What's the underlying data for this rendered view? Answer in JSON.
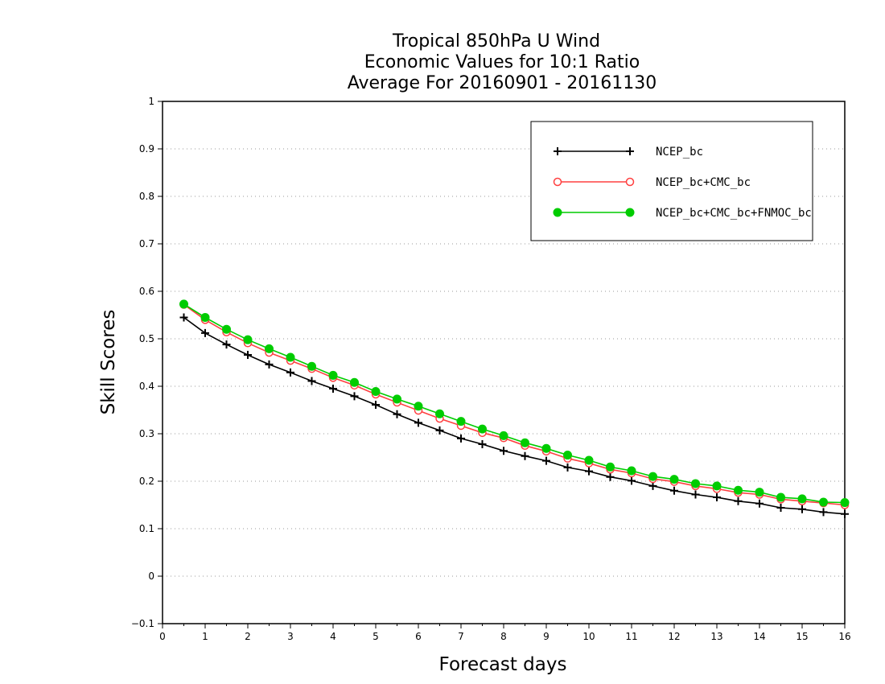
{
  "chart_data": {
    "type": "line",
    "title": "Tropical 850hPa U Wind",
    "subtitle": "Economic Values for 10:1 Ratio",
    "subtitle2": "Average For 20160901 - 20161130",
    "xlabel": "Forecast days",
    "ylabel": "Skill Scores",
    "xlim": [
      0,
      16
    ],
    "ylim": [
      -0.1,
      1
    ],
    "x_ticks": [
      "0",
      "1",
      "2",
      "3",
      "4",
      "5",
      "6",
      "7",
      "8",
      "9",
      "10",
      "11",
      "12",
      "13",
      "14",
      "15",
      "16"
    ],
    "y_ticks": [
      "−0.1",
      "0",
      "0.1",
      "0.2",
      "0.3",
      "0.4",
      "0.5",
      "0.6",
      "0.7",
      "0.8",
      "0.9",
      "1"
    ],
    "grid": "horizontal dotted",
    "legend": "top-right",
    "x": [
      0.5,
      1,
      1.5,
      2,
      2.5,
      3,
      3.5,
      4,
      4.5,
      5,
      5.5,
      6,
      6.5,
      7,
      7.5,
      8,
      8.5,
      9,
      9.5,
      10,
      10.5,
      11,
      11.5,
      12,
      12.5,
      13,
      13.5,
      14,
      14.5,
      15,
      15.5,
      16
    ],
    "series": [
      {
        "name": "NCEP_bc",
        "color": "#000000",
        "marker": "plus",
        "values": [
          0.545,
          0.512,
          0.488,
          0.466,
          0.446,
          0.429,
          0.411,
          0.395,
          0.379,
          0.361,
          0.341,
          0.323,
          0.307,
          0.29,
          0.278,
          0.264,
          0.253,
          0.243,
          0.229,
          0.221,
          0.209,
          0.201,
          0.19,
          0.18,
          0.172,
          0.166,
          0.158,
          0.153,
          0.144,
          0.141,
          0.135,
          0.131
        ]
      },
      {
        "name": "NCEP_bc+CMC_bc",
        "color": "#ff4040",
        "marker": "open-circle",
        "values": [
          0.572,
          0.54,
          0.514,
          0.491,
          0.471,
          0.454,
          0.437,
          0.418,
          0.402,
          0.383,
          0.366,
          0.349,
          0.332,
          0.317,
          0.302,
          0.291,
          0.275,
          0.263,
          0.248,
          0.238,
          0.225,
          0.217,
          0.205,
          0.199,
          0.19,
          0.184,
          0.176,
          0.172,
          0.162,
          0.158,
          0.154,
          0.15
        ]
      },
      {
        "name": "NCEP_bc+CMC_bc+FNMOC_bc",
        "color": "#00cc00",
        "marker": "filled-circle",
        "values": [
          0.573,
          0.545,
          0.52,
          0.498,
          0.479,
          0.461,
          0.442,
          0.423,
          0.408,
          0.389,
          0.373,
          0.358,
          0.342,
          0.326,
          0.31,
          0.296,
          0.281,
          0.269,
          0.255,
          0.244,
          0.23,
          0.222,
          0.21,
          0.204,
          0.195,
          0.19,
          0.181,
          0.177,
          0.166,
          0.163,
          0.156,
          0.155
        ]
      }
    ]
  }
}
